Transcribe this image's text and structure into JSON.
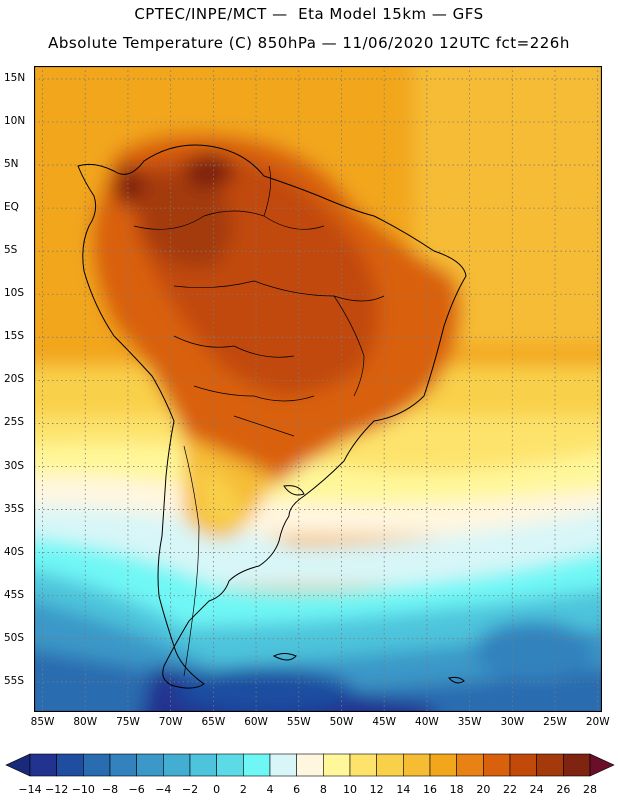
{
  "header": {
    "line1": "CPTEC/INPE/MCT —  Eta Model 15km — GFS",
    "line2": "Absolute Temperature (C) 850hPa — 11/06/2020 12UTC fct=226h"
  },
  "map": {
    "lat_labels": [
      "15N",
      "10N",
      "5N",
      "EQ",
      "5S",
      "10S",
      "15S",
      "20S",
      "25S",
      "30S",
      "35S",
      "40S",
      "45S",
      "50S",
      "55S"
    ],
    "lon_labels": [
      "85W",
      "80W",
      "75W",
      "70W",
      "65W",
      "60W",
      "55W",
      "50W",
      "45W",
      "40W",
      "35W",
      "30W",
      "25W",
      "20W"
    ],
    "lat_range": [
      16.5,
      -58.5
    ],
    "lon_range": [
      -86,
      -19.5
    ]
  },
  "colorbar": {
    "labels": [
      "-14",
      "-12",
      "-10",
      "-8",
      "-6",
      "-4",
      "-2",
      "0",
      "2",
      "4",
      "6",
      "8",
      "10",
      "12",
      "14",
      "16",
      "18",
      "20",
      "22",
      "24",
      "26",
      "28"
    ],
    "colors": [
      "#22338f",
      "#1f4ea0",
      "#2a6cb0",
      "#3382bd",
      "#3b98c8",
      "#44aed2",
      "#4dc4dc",
      "#5cdbe6",
      "#6ff7f5",
      "#d8f6f8",
      "#fff6e0",
      "#fff79a",
      "#fde36c",
      "#f9d04a",
      "#f6bc34",
      "#f2a61c",
      "#e88214",
      "#d9600d",
      "#c14a0b",
      "#a43a0c",
      "#7e2410"
    ],
    "under_color": "#1a2a7a",
    "over_color": "#6a0f2a"
  }
}
